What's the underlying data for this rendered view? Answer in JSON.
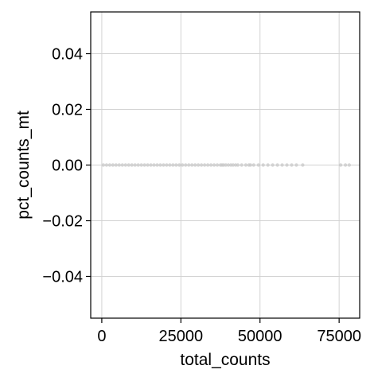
{
  "chart_data": {
    "type": "scatter",
    "title": "",
    "xlabel": "total_counts",
    "ylabel": "pct_counts_mt",
    "xlim": [
      -3500,
      81500
    ],
    "ylim": [
      -0.055,
      0.055
    ],
    "xticks": [
      0,
      25000,
      50000,
      75000
    ],
    "xtick_labels": [
      "0",
      "25000",
      "50000",
      "75000"
    ],
    "yticks": [
      -0.04,
      -0.02,
      0.0,
      0.02,
      0.04
    ],
    "ytick_labels": [
      "−0.04",
      "−0.02",
      "0.00",
      "0.02",
      "0.04"
    ],
    "grid": true,
    "point_color": "#c8c8c8",
    "points": {
      "x": [
        500,
        1500,
        2500,
        3500,
        4500,
        5500,
        6500,
        7500,
        8500,
        9500,
        10500,
        11500,
        12500,
        13500,
        14500,
        15500,
        16500,
        17500,
        18500,
        19500,
        20500,
        21500,
        22500,
        23500,
        24500,
        25500,
        26500,
        27500,
        28500,
        29500,
        30500,
        31500,
        32500,
        33500,
        34500,
        35500,
        36500,
        37500,
        38000,
        38500,
        39200,
        40000,
        40800,
        41500,
        42300,
        43000,
        44200,
        45500,
        46500,
        47000,
        48000,
        49500,
        51000,
        52500,
        54000,
        55500,
        57000,
        58500,
        60000,
        61500,
        63500,
        75500,
        77000,
        78200
      ],
      "y": [
        0,
        0,
        0,
        0,
        0,
        0,
        0,
        0,
        0,
        0,
        0,
        0,
        0,
        0,
        0,
        0,
        0,
        0,
        0,
        0,
        0,
        0,
        0,
        0,
        0,
        0,
        0,
        0,
        0,
        0,
        0,
        0,
        0,
        0,
        0,
        0,
        0,
        0,
        0,
        0,
        0,
        0,
        0,
        0,
        0,
        0,
        0,
        0,
        0,
        0,
        0,
        0,
        0,
        0,
        0,
        0,
        0,
        0,
        0,
        0,
        0,
        0,
        0,
        0
      ]
    }
  }
}
